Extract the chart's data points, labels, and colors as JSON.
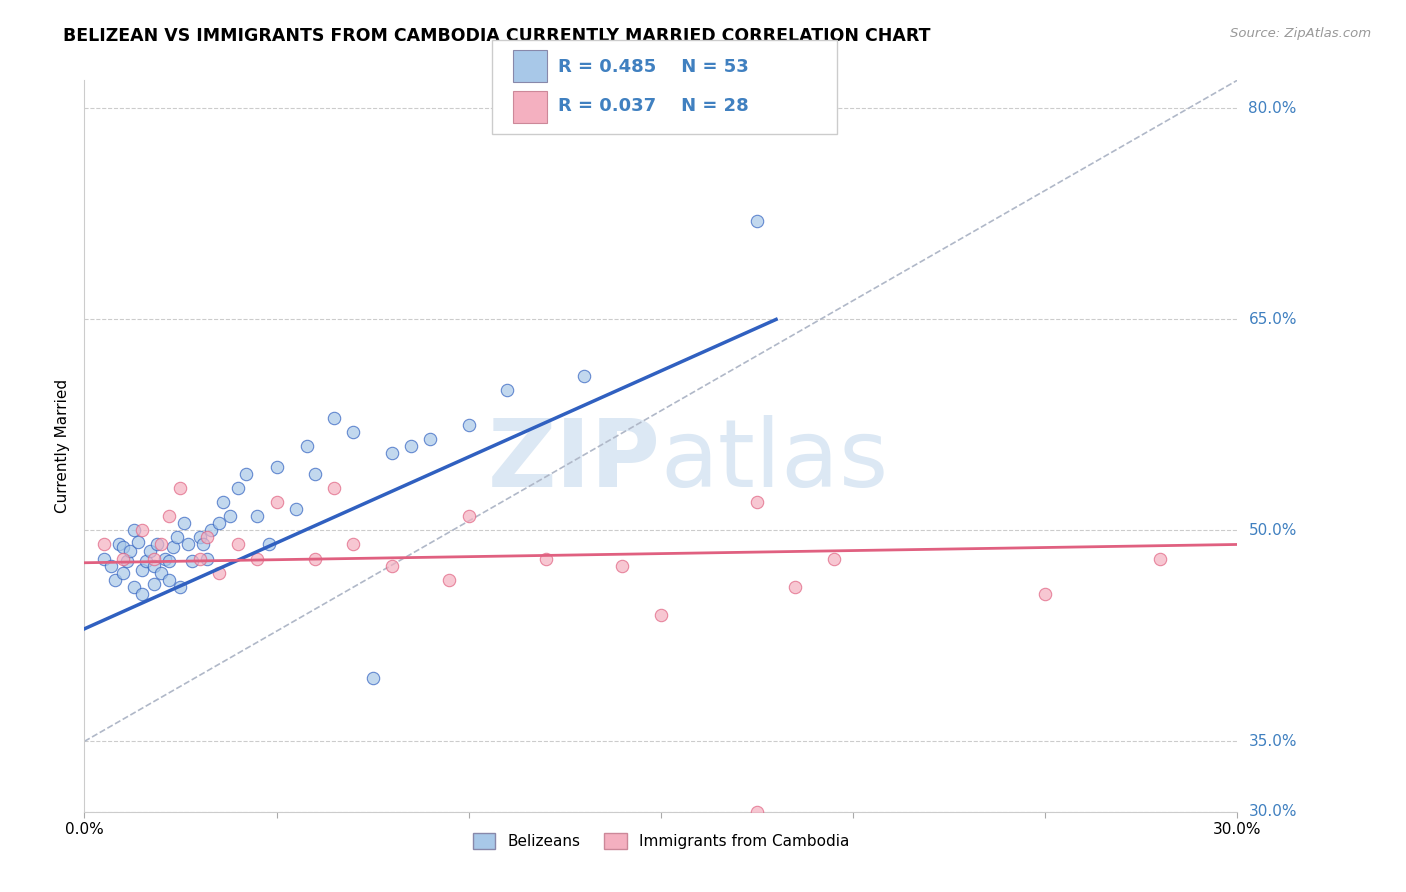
{
  "title": "BELIZEAN VS IMMIGRANTS FROM CAMBODIA CURRENTLY MARRIED CORRELATION CHART",
  "source": "Source: ZipAtlas.com",
  "ylabel": "Currently Married",
  "r_blue": 0.485,
  "n_blue": 53,
  "r_pink": 0.037,
  "n_pink": 28,
  "xmin": 0.0,
  "xmax": 0.3,
  "ymin": 0.3,
  "ymax": 0.82,
  "blue_color": "#a8c8e8",
  "pink_color": "#f4b0c0",
  "blue_line_color": "#3060c0",
  "pink_line_color": "#e06080",
  "gray_dash_color": "#b0b8c8",
  "watermark_color": "#dce8f4",
  "right_label_color": "#4080c0",
  "blue_x": [
    0.005,
    0.007,
    0.008,
    0.009,
    0.01,
    0.01,
    0.011,
    0.012,
    0.013,
    0.013,
    0.014,
    0.015,
    0.015,
    0.016,
    0.017,
    0.018,
    0.018,
    0.019,
    0.02,
    0.021,
    0.022,
    0.022,
    0.023,
    0.024,
    0.025,
    0.026,
    0.027,
    0.028,
    0.03,
    0.031,
    0.032,
    0.033,
    0.035,
    0.036,
    0.038,
    0.04,
    0.042,
    0.045,
    0.048,
    0.05,
    0.055,
    0.058,
    0.06,
    0.065,
    0.07,
    0.075,
    0.08,
    0.085,
    0.09,
    0.1,
    0.11,
    0.13,
    0.175
  ],
  "blue_y": [
    0.48,
    0.475,
    0.465,
    0.49,
    0.488,
    0.47,
    0.478,
    0.485,
    0.5,
    0.46,
    0.492,
    0.472,
    0.455,
    0.478,
    0.485,
    0.475,
    0.462,
    0.49,
    0.47,
    0.48,
    0.465,
    0.478,
    0.488,
    0.495,
    0.46,
    0.505,
    0.49,
    0.478,
    0.495,
    0.49,
    0.48,
    0.5,
    0.505,
    0.52,
    0.51,
    0.53,
    0.54,
    0.51,
    0.49,
    0.545,
    0.515,
    0.56,
    0.54,
    0.58,
    0.57,
    0.395,
    0.555,
    0.56,
    0.565,
    0.575,
    0.6,
    0.61,
    0.72
  ],
  "pink_x": [
    0.005,
    0.01,
    0.015,
    0.018,
    0.02,
    0.022,
    0.025,
    0.03,
    0.032,
    0.035,
    0.04,
    0.045,
    0.05,
    0.06,
    0.065,
    0.07,
    0.08,
    0.095,
    0.1,
    0.12,
    0.14,
    0.15,
    0.175,
    0.185,
    0.195,
    0.25,
    0.28,
    0.175
  ],
  "pink_y": [
    0.49,
    0.48,
    0.5,
    0.48,
    0.49,
    0.51,
    0.53,
    0.48,
    0.495,
    0.47,
    0.49,
    0.48,
    0.52,
    0.48,
    0.53,
    0.49,
    0.475,
    0.465,
    0.51,
    0.48,
    0.475,
    0.44,
    0.52,
    0.46,
    0.48,
    0.455,
    0.48,
    0.3
  ]
}
